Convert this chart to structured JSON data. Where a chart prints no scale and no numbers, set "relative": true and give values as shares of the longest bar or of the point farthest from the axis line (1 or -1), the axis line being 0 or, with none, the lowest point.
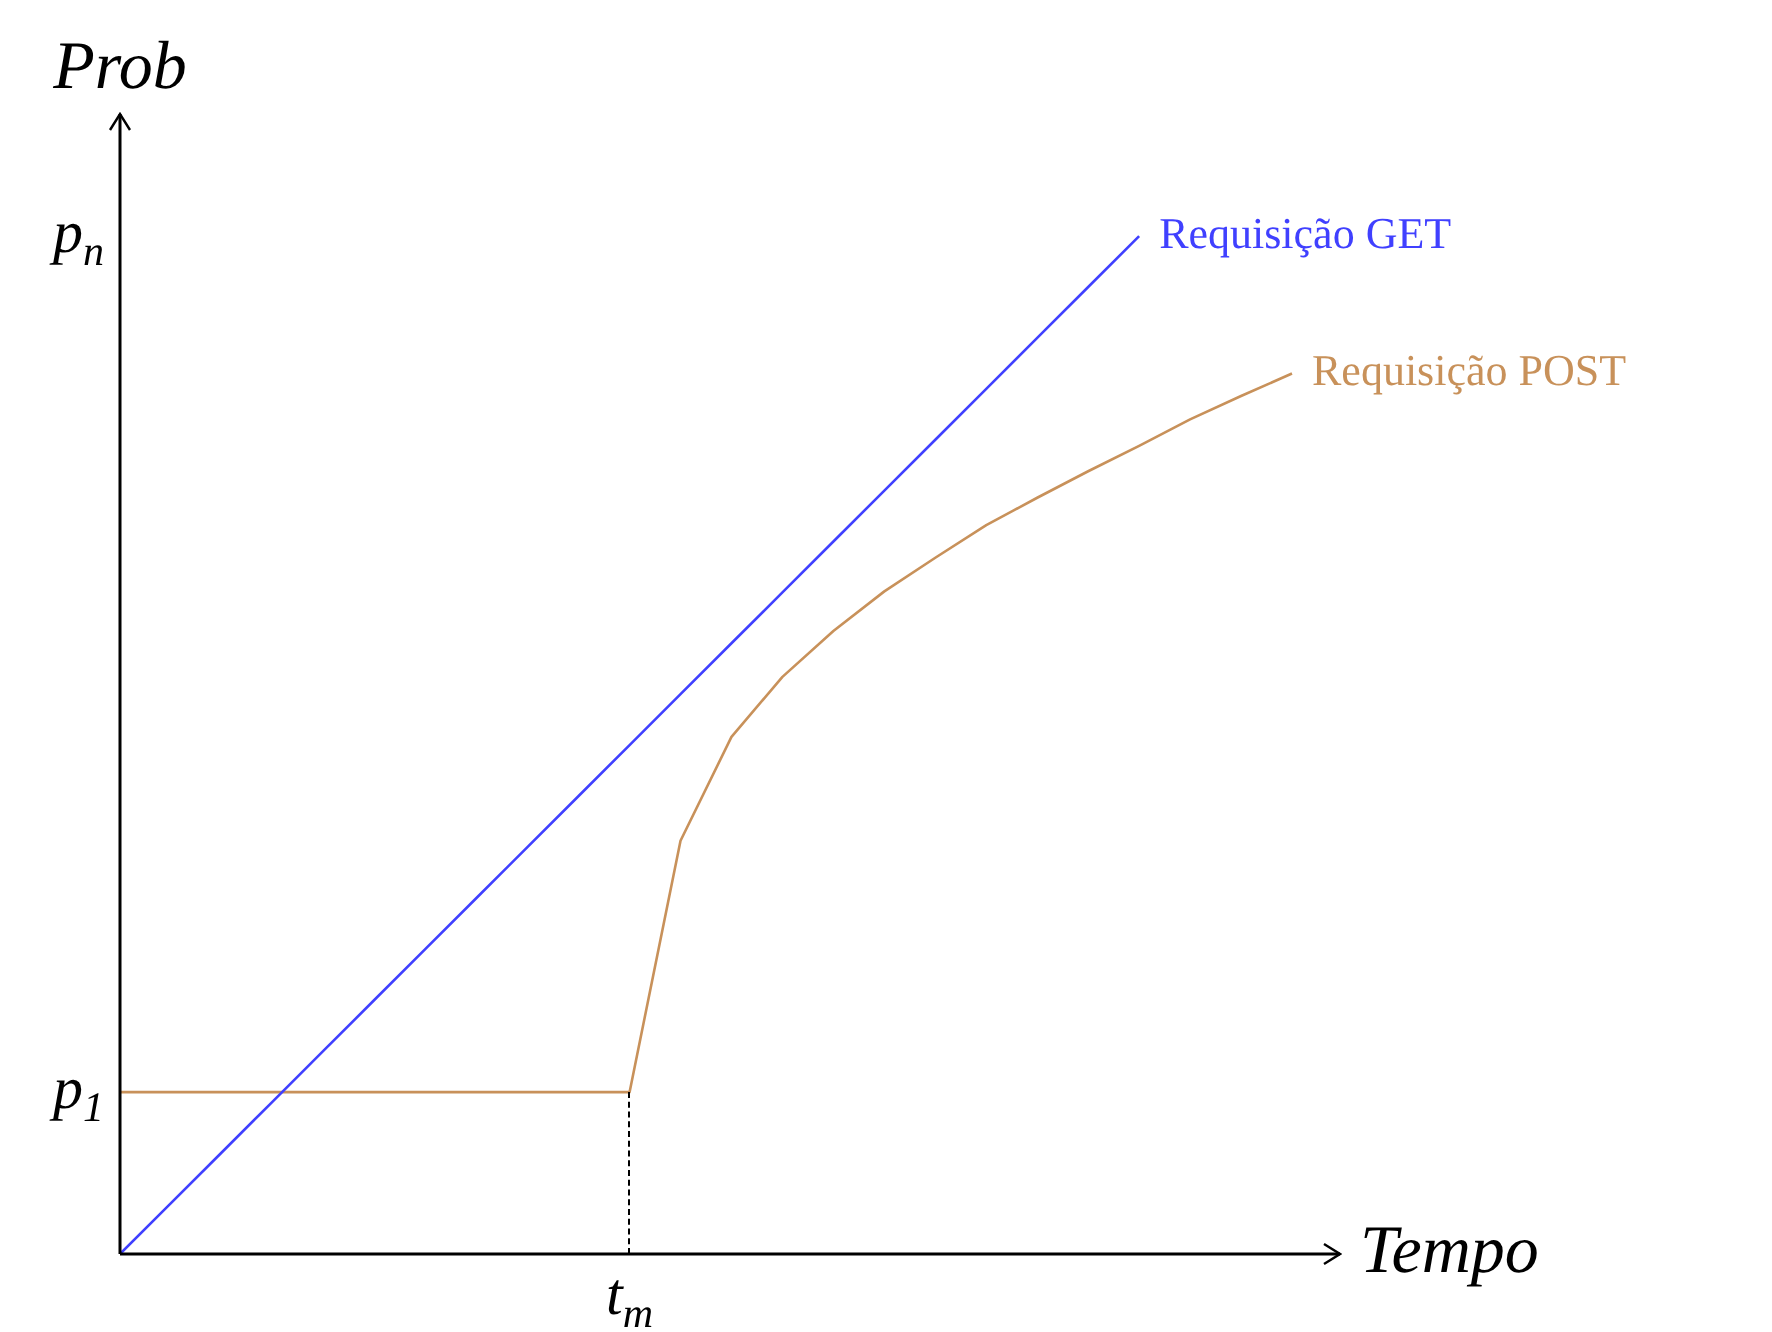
{
  "chart_data": {
    "type": "line",
    "relative": true,
    "xlabel": "Tempo",
    "ylabel": "Prob",
    "legend": false,
    "marker": "none",
    "categories": [
      null,
      null,
      null,
      null,
      null,
      null,
      null,
      null,
      null,
      null,
      null,
      null,
      null,
      null,
      null,
      null,
      null,
      null,
      null,
      null,
      null,
      null,
      null,
      null
    ],
    "annotations": [
      "t$_{m}$",
      "p$_{1}$",
      "p$_{n}$"
    ],
    "series": [
      {
        "name": "Requisição GET",
        "color": "#4040ff",
        "values": [
          0,
          0.05,
          0.1,
          0.15,
          0.2,
          0.25,
          0.3,
          0.35,
          0.4,
          0.45,
          0.5,
          0.55,
          0.6,
          0.65,
          0.7,
          0.75,
          0.8,
          0.85,
          0.9,
          0.95,
          1,
          null,
          null,
          null
        ]
      },
      {
        "name": "Requisição POST",
        "color": "#c8915a",
        "values": [
          0.159,
          0.159,
          0.159,
          0.159,
          0.159,
          0.159,
          0.159,
          0.159,
          0.159,
          0.159,
          0.159,
          0.406,
          0.508,
          0.567,
          0.612,
          0.651,
          0.684,
          0.716,
          0.743,
          0.769,
          0.794,
          0.82,
          0.843,
          0.865
        ]
      }
    ]
  }
}
